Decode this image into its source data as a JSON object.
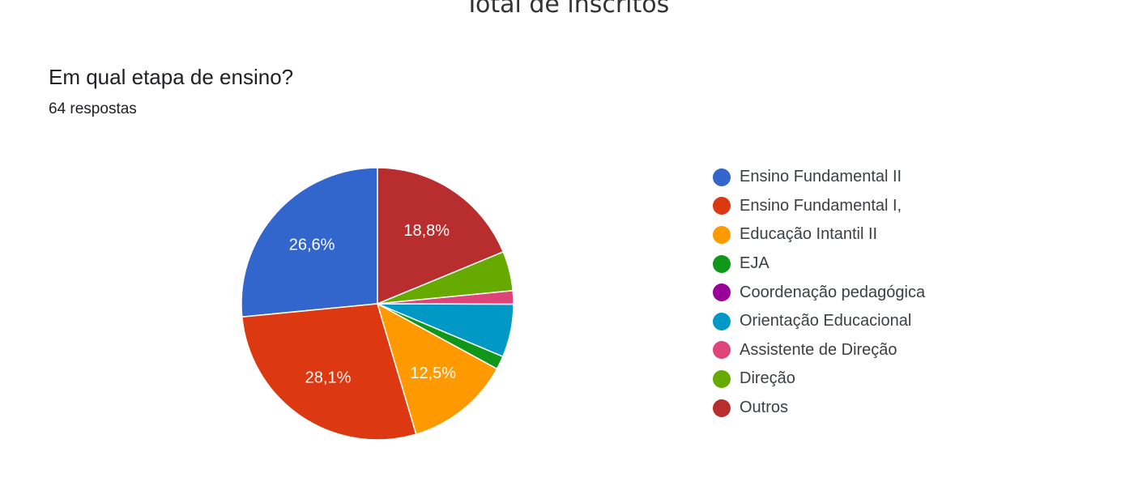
{
  "page_title": "Total de inscritos",
  "question": "Em qual etapa de ensino?",
  "responses_count": "64 respostas",
  "chart_data": {
    "type": "pie",
    "unit": "%",
    "categories": [
      "Ensino Fundamental II",
      "Ensino Fundamental I,",
      "Educação Intantil II",
      "EJA",
      "Coordenação pedagógica",
      "Orientação Educacional",
      "Assistente de Direção",
      "Direção",
      "Outros"
    ],
    "values": [
      26.6,
      28.1,
      12.5,
      1.6,
      0,
      6.3,
      1.6,
      4.7,
      18.8
    ],
    "value_labels": [
      "26,6%",
      "28,1%",
      "12,5%",
      "",
      "",
      "",
      "",
      "",
      "18,8%"
    ],
    "colors": [
      "#3366cc",
      "#dc3912",
      "#ff9900",
      "#109618",
      "#990099",
      "#0099c6",
      "#dd4477",
      "#66aa00",
      "#b82e2e"
    ],
    "legend_position": "right"
  }
}
